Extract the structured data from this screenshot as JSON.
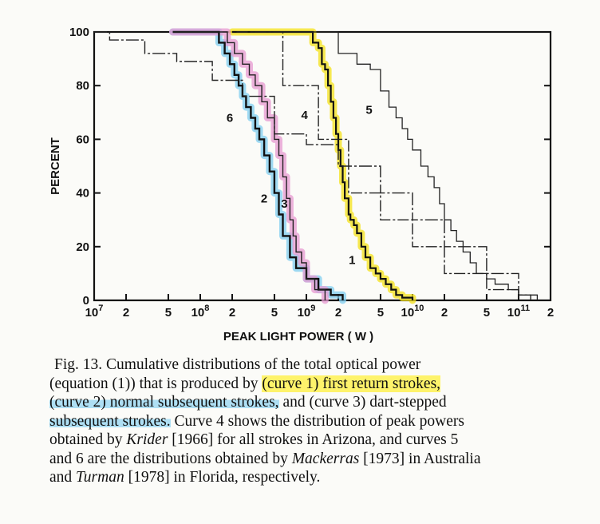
{
  "chart_data": {
    "type": "line",
    "xlabel": "PEAK LIGHT POWER ( W )",
    "ylabel": "PERCENT",
    "x_scale": "log",
    "xlim": [
      10000000,
      200000000000
    ],
    "ylim": [
      0,
      100
    ],
    "x_tick_labels": [
      {
        "value": 10000000,
        "label": "10^7"
      },
      {
        "value": 20000000,
        "label": "2"
      },
      {
        "value": 50000000,
        "label": "5"
      },
      {
        "value": 100000000,
        "label": "10^8"
      },
      {
        "value": 200000000,
        "label": "2"
      },
      {
        "value": 500000000,
        "label": "5"
      },
      {
        "value": 1000000000,
        "label": "10^9"
      },
      {
        "value": 2000000000,
        "label": "2"
      },
      {
        "value": 5000000000,
        "label": "5"
      },
      {
        "value": 10000000000,
        "label": "10^10"
      },
      {
        "value": 20000000000,
        "label": "2"
      },
      {
        "value": 50000000000,
        "label": "5"
      },
      {
        "value": 100000000000,
        "label": "10^11"
      },
      {
        "value": 200000000000,
        "label": "2"
      }
    ],
    "y_ticks": [
      0,
      20,
      40,
      60,
      80,
      100
    ],
    "series": [
      {
        "name": "1",
        "highlight": "#f4e21a",
        "label_at": [
          2700000000,
          15
        ],
        "x": [
          200000000.0,
          1000000000.0,
          1150000000.0,
          1300000000.0,
          1400000000.0,
          1500000000.0,
          1600000000.0,
          1700000000.0,
          1800000000.0,
          1900000000.0,
          2000000000.0,
          2100000000.0,
          2200000000.0,
          2300000000.0,
          2500000000.0,
          2600000000.0,
          2800000000.0,
          3000000000.0,
          3300000000.0,
          3600000000.0,
          4000000000.0,
          4500000000.0,
          5000000000.0,
          5600000000.0,
          6300000000.0,
          7000000000.0,
          8000000000.0,
          10000000000.0
        ],
        "y": [
          100,
          100,
          96,
          94,
          88,
          86,
          80,
          74,
          68,
          62,
          56,
          50,
          44,
          38,
          32,
          30,
          28,
          25,
          20,
          16,
          12,
          10,
          8,
          6,
          4,
          2,
          1,
          0
        ]
      },
      {
        "name": "2",
        "highlight": "#7fcdf0",
        "label_at": [
          400000000,
          38
        ],
        "x": [
          55000000.0,
          130000000.0,
          150000000.0,
          170000000.0,
          190000000.0,
          210000000.0,
          230000000.0,
          250000000.0,
          270000000.0,
          300000000.0,
          330000000.0,
          360000000.0,
          400000000.0,
          450000000.0,
          500000000.0,
          550000000.0,
          600000000.0,
          700000000.0,
          800000000.0,
          1000000000.0,
          1300000000.0,
          1700000000.0,
          2200000000.0
        ],
        "y": [
          100,
          100,
          96,
          92,
          88,
          84,
          80,
          76,
          72,
          68,
          64,
          60,
          54,
          48,
          40,
          32,
          24,
          16,
          12,
          8,
          4,
          2,
          0
        ]
      },
      {
        "name": "3",
        "highlight": "#e79ad2",
        "label_at": [
          620000000,
          36
        ],
        "x": [
          55000000.0,
          150000000.0,
          180000000.0,
          210000000.0,
          250000000.0,
          290000000.0,
          330000000.0,
          380000000.0,
          430000000.0,
          500000000.0,
          550000000.0,
          600000000.0,
          650000000.0,
          700000000.0,
          750000000.0,
          800000000.0,
          900000000.0,
          1000000000.0,
          1200000000.0,
          1500000000.0
        ],
        "y": [
          100,
          100,
          96,
          92,
          88,
          84,
          80,
          74,
          68,
          60,
          54,
          46,
          38,
          30,
          24,
          18,
          14,
          8,
          4,
          0
        ]
      },
      {
        "name": "4",
        "label_at": [
          960000000,
          69
        ],
        "x": [
          220000000.0,
          600000000.0,
          600000000.0,
          1300000000.0,
          1300000000.0,
          2500000000.0,
          2500000000.0,
          5000000000.0,
          5000000000.0,
          10000000000.0,
          10000000000.0,
          20000000000.0,
          20000000000.0,
          50000000000.0,
          50000000000.0,
          100000000000.0,
          100000000000.0
        ],
        "y": [
          100,
          100,
          80,
          80,
          60,
          60,
          40,
          40,
          30,
          30,
          20,
          20,
          10,
          10,
          4,
          4,
          0
        ]
      },
      {
        "name": "5",
        "label_at": [
          3900000000,
          71
        ],
        "x": [
          300000000.0,
          1500000000.0,
          2000000000.0,
          3000000000.0,
          4000000000.0,
          5000000000.0,
          6000000000.0,
          7000000000.0,
          8000000000.0,
          9000000000.0,
          10000000000.0,
          12000000000.0,
          14000000000.0,
          16000000000.0,
          18000000000.0,
          20000000000.0,
          23000000000.0,
          26000000000.0,
          30000000000.0,
          35000000000.0,
          40000000000.0,
          50000000000.0,
          60000000000.0,
          80000000000.0,
          100000000000.0,
          150000000000.0
        ],
        "y": [
          100,
          100,
          92,
          88,
          86,
          78,
          72,
          68,
          64,
          60,
          56,
          50,
          46,
          42,
          36,
          30,
          26,
          22,
          18,
          14,
          10,
          8,
          6,
          4,
          2,
          0
        ]
      },
      {
        "name": "6",
        "label_at": [
          190000000,
          68
        ],
        "x": [
          10000000.0,
          14000000.0,
          14000000.0,
          30000000.0,
          30000000.0,
          60000000.0,
          60000000.0,
          130000000.0,
          130000000.0,
          250000000.0,
          250000000.0,
          500000000.0,
          500000000.0,
          1000000000.0,
          1000000000.0,
          2000000000.0,
          2000000000.0,
          5000000000.0,
          5000000000.0,
          10000000000.0,
          10000000000.0,
          20000000000.0,
          20000000000.0,
          50000000000.0,
          50000000000.0,
          100000000000.0,
          100000000000.0,
          130000000000.0,
          130000000000.0
        ],
        "y": [
          100,
          100,
          97,
          97,
          92,
          92,
          89,
          89,
          82,
          82,
          76,
          76,
          62,
          62,
          58,
          58,
          50,
          50,
          40,
          40,
          30,
          30,
          20,
          20,
          10,
          10,
          2,
          2,
          0
        ]
      }
    ]
  },
  "caption": {
    "lines": [
      [
        {
          "t": "Fig. 13.  Cumulative distributions of the total optical power"
        }
      ],
      [
        {
          "t": "(equation (1)) that is produced by "
        },
        {
          "t": "(curve 1) first return strokes,",
          "hl": "yellow"
        }
      ],
      [
        {
          "t": "(curve 2) normal subsequent strokes,",
          "hl": "blue"
        },
        {
          "t": " and (curve 3) dart-stepped"
        }
      ],
      [
        {
          "t": "subsequent strokes.",
          "hl": "blue"
        },
        {
          "t": " Curve 4 shows the distribution of peak powers"
        }
      ],
      [
        {
          "t": "obtained by "
        },
        {
          "t": "Krider",
          "i": true
        },
        {
          "t": " [1966] for all strokes in Arizona, and curves 5"
        }
      ],
      [
        {
          "t": "and 6 are the distributions obtained by "
        },
        {
          "t": "Mackerras",
          "i": true
        },
        {
          "t": " [1973] in Australia"
        }
      ],
      [
        {
          "t": "and "
        },
        {
          "t": "Turman",
          "i": true
        },
        {
          "t": " [1978] in Florida, respectively."
        }
      ]
    ]
  }
}
